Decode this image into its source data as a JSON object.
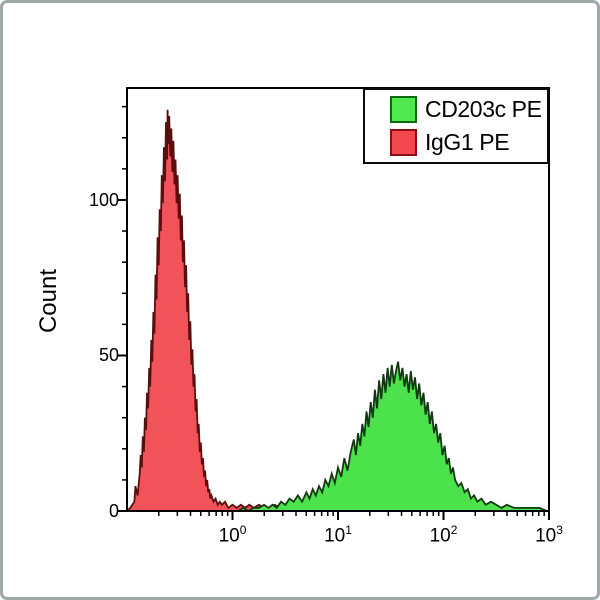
{
  "figure": {
    "background": "#ffffff",
    "border_color": "#9fa8a8"
  },
  "chart_data": {
    "type": "area",
    "subtype": "flow-cytometry-overlay-histogram",
    "title": "",
    "xlabel": "",
    "ylabel": "Count",
    "x_scale": "log10",
    "xlim_log": [
      -1,
      3
    ],
    "ylim": [
      0,
      136
    ],
    "grid": "off",
    "legend_position": "top-right",
    "axis_color": "#000000",
    "x_ticks": [
      {
        "base": "10",
        "exp": "0",
        "log": 0
      },
      {
        "base": "10",
        "exp": "1",
        "log": 1
      },
      {
        "base": "10",
        "exp": "2",
        "log": 2
      },
      {
        "base": "10",
        "exp": "3",
        "log": 3
      }
    ],
    "y_ticks": [
      {
        "label": "0",
        "value": 0
      },
      {
        "label": "50",
        "value": 50
      },
      {
        "label": "100",
        "value": 100
      }
    ],
    "y_minor_ticks": [
      10,
      20,
      30,
      40,
      60,
      70,
      80,
      90,
      110,
      120,
      130
    ],
    "legend": [
      {
        "label": "CD203c PE",
        "fill": "#4fe84f",
        "border": "#0d6b0d"
      },
      {
        "label": "IgG1 PE",
        "fill": "#f2484f",
        "border": "#8c0f14"
      }
    ],
    "series": [
      {
        "name": "IgG1 PE",
        "fill": "#f25358",
        "stroke": "#5a0f0f",
        "points": [
          [
            -1.0,
            0
          ],
          [
            -0.97,
            1
          ],
          [
            -0.95,
            2
          ],
          [
            -0.93,
            3
          ],
          [
            -0.92,
            8
          ],
          [
            -0.9,
            5
          ],
          [
            -0.88,
            12
          ],
          [
            -0.87,
            18
          ],
          [
            -0.86,
            14
          ],
          [
            -0.85,
            24
          ],
          [
            -0.84,
            19
          ],
          [
            -0.83,
            30
          ],
          [
            -0.82,
            26
          ],
          [
            -0.81,
            38
          ],
          [
            -0.8,
            33
          ],
          [
            -0.79,
            46
          ],
          [
            -0.78,
            40
          ],
          [
            -0.77,
            55
          ],
          [
            -0.76,
            48
          ],
          [
            -0.75,
            64
          ],
          [
            -0.74,
            57
          ],
          [
            -0.73,
            76
          ],
          [
            -0.72,
            68
          ],
          [
            -0.71,
            88
          ],
          [
            -0.7,
            79
          ],
          [
            -0.69,
            97
          ],
          [
            -0.68,
            90
          ],
          [
            -0.67,
            108
          ],
          [
            -0.66,
            99
          ],
          [
            -0.65,
            117
          ],
          [
            -0.64,
            106
          ],
          [
            -0.63,
            125
          ],
          [
            -0.62,
            113
          ],
          [
            -0.615,
            129
          ],
          [
            -0.61,
            118
          ],
          [
            -0.6,
            127
          ],
          [
            -0.59,
            114
          ],
          [
            -0.58,
            123
          ],
          [
            -0.57,
            109
          ],
          [
            -0.56,
            119
          ],
          [
            -0.55,
            105
          ],
          [
            -0.54,
            113
          ],
          [
            -0.53,
            99
          ],
          [
            -0.52,
            108
          ],
          [
            -0.51,
            94
          ],
          [
            -0.5,
            102
          ],
          [
            -0.49,
            87
          ],
          [
            -0.48,
            95
          ],
          [
            -0.47,
            80
          ],
          [
            -0.46,
            87
          ],
          [
            -0.45,
            72
          ],
          [
            -0.44,
            79
          ],
          [
            -0.43,
            64
          ],
          [
            -0.42,
            70
          ],
          [
            -0.41,
            55
          ],
          [
            -0.4,
            61
          ],
          [
            -0.39,
            47
          ],
          [
            -0.38,
            52
          ],
          [
            -0.37,
            40
          ],
          [
            -0.36,
            44
          ],
          [
            -0.35,
            32
          ],
          [
            -0.34,
            36
          ],
          [
            -0.33,
            25
          ],
          [
            -0.32,
            28
          ],
          [
            -0.31,
            19
          ],
          [
            -0.3,
            22
          ],
          [
            -0.29,
            15
          ],
          [
            -0.28,
            17
          ],
          [
            -0.27,
            11
          ],
          [
            -0.26,
            13
          ],
          [
            -0.25,
            8
          ],
          [
            -0.24,
            10
          ],
          [
            -0.23,
            6
          ],
          [
            -0.22,
            7
          ],
          [
            -0.21,
            4
          ],
          [
            -0.2,
            5
          ],
          [
            -0.18,
            3
          ],
          [
            -0.16,
            4
          ],
          [
            -0.14,
            2
          ],
          [
            -0.12,
            3
          ],
          [
            -0.1,
            2
          ],
          [
            -0.07,
            3
          ],
          [
            -0.04,
            1
          ],
          [
            0.0,
            2
          ],
          [
            0.04,
            1
          ],
          [
            0.08,
            2
          ],
          [
            0.12,
            1
          ],
          [
            0.16,
            2
          ],
          [
            0.2,
            1
          ],
          [
            0.25,
            2
          ],
          [
            0.3,
            1
          ],
          [
            0.35,
            1
          ],
          [
            0.4,
            2
          ],
          [
            0.45,
            1
          ],
          [
            0.5,
            1
          ],
          [
            0.55,
            0
          ]
        ]
      },
      {
        "name": "CD203c PE",
        "fill": "#4ce24c",
        "stroke": "#123a12",
        "points": [
          [
            0.05,
            0
          ],
          [
            0.1,
            1
          ],
          [
            0.15,
            0
          ],
          [
            0.2,
            1
          ],
          [
            0.25,
            1
          ],
          [
            0.3,
            2
          ],
          [
            0.34,
            1
          ],
          [
            0.38,
            2
          ],
          [
            0.42,
            1
          ],
          [
            0.46,
            3
          ],
          [
            0.5,
            2
          ],
          [
            0.54,
            4
          ],
          [
            0.58,
            3
          ],
          [
            0.62,
            5
          ],
          [
            0.66,
            3
          ],
          [
            0.7,
            6
          ],
          [
            0.73,
            4
          ],
          [
            0.76,
            7
          ],
          [
            0.79,
            5
          ],
          [
            0.82,
            8
          ],
          [
            0.85,
            6
          ],
          [
            0.88,
            10
          ],
          [
            0.91,
            8
          ],
          [
            0.94,
            12
          ],
          [
            0.97,
            9
          ],
          [
            1.0,
            14
          ],
          [
            1.03,
            11
          ],
          [
            1.06,
            17
          ],
          [
            1.09,
            13
          ],
          [
            1.12,
            19
          ],
          [
            1.15,
            23
          ],
          [
            1.17,
            18
          ],
          [
            1.19,
            25
          ],
          [
            1.21,
            21
          ],
          [
            1.23,
            28
          ],
          [
            1.25,
            24
          ],
          [
            1.27,
            32
          ],
          [
            1.29,
            27
          ],
          [
            1.31,
            35
          ],
          [
            1.33,
            30
          ],
          [
            1.35,
            39
          ],
          [
            1.37,
            33
          ],
          [
            1.39,
            42
          ],
          [
            1.41,
            36
          ],
          [
            1.43,
            44
          ],
          [
            1.45,
            38
          ],
          [
            1.47,
            46
          ],
          [
            1.49,
            40
          ],
          [
            1.51,
            47
          ],
          [
            1.53,
            41
          ],
          [
            1.55,
            45
          ],
          [
            1.57,
            48
          ],
          [
            1.59,
            42
          ],
          [
            1.61,
            46
          ],
          [
            1.63,
            40
          ],
          [
            1.65,
            44
          ],
          [
            1.67,
            38
          ],
          [
            1.69,
            45
          ],
          [
            1.71,
            39
          ],
          [
            1.73,
            43
          ],
          [
            1.75,
            36
          ],
          [
            1.77,
            41
          ],
          [
            1.79,
            34
          ],
          [
            1.81,
            38
          ],
          [
            1.83,
            31
          ],
          [
            1.85,
            35
          ],
          [
            1.87,
            28
          ],
          [
            1.89,
            32
          ],
          [
            1.91,
            25
          ],
          [
            1.93,
            28
          ],
          [
            1.95,
            22
          ],
          [
            1.97,
            25
          ],
          [
            1.99,
            18
          ],
          [
            2.01,
            21
          ],
          [
            2.03,
            15
          ],
          [
            2.05,
            17
          ],
          [
            2.07,
            12
          ],
          [
            2.09,
            14
          ],
          [
            2.11,
            10
          ],
          [
            2.14,
            8
          ],
          [
            2.17,
            9
          ],
          [
            2.2,
            6
          ],
          [
            2.23,
            7
          ],
          [
            2.26,
            4
          ],
          [
            2.29,
            5
          ],
          [
            2.32,
            3
          ],
          [
            2.36,
            4
          ],
          [
            2.4,
            2
          ],
          [
            2.45,
            3
          ],
          [
            2.5,
            2
          ],
          [
            2.55,
            1
          ],
          [
            2.6,
            2
          ],
          [
            2.67,
            1
          ],
          [
            2.75,
            1
          ],
          [
            2.83,
            1
          ],
          [
            2.91,
            1
          ],
          [
            2.98,
            0
          ]
        ]
      }
    ]
  }
}
